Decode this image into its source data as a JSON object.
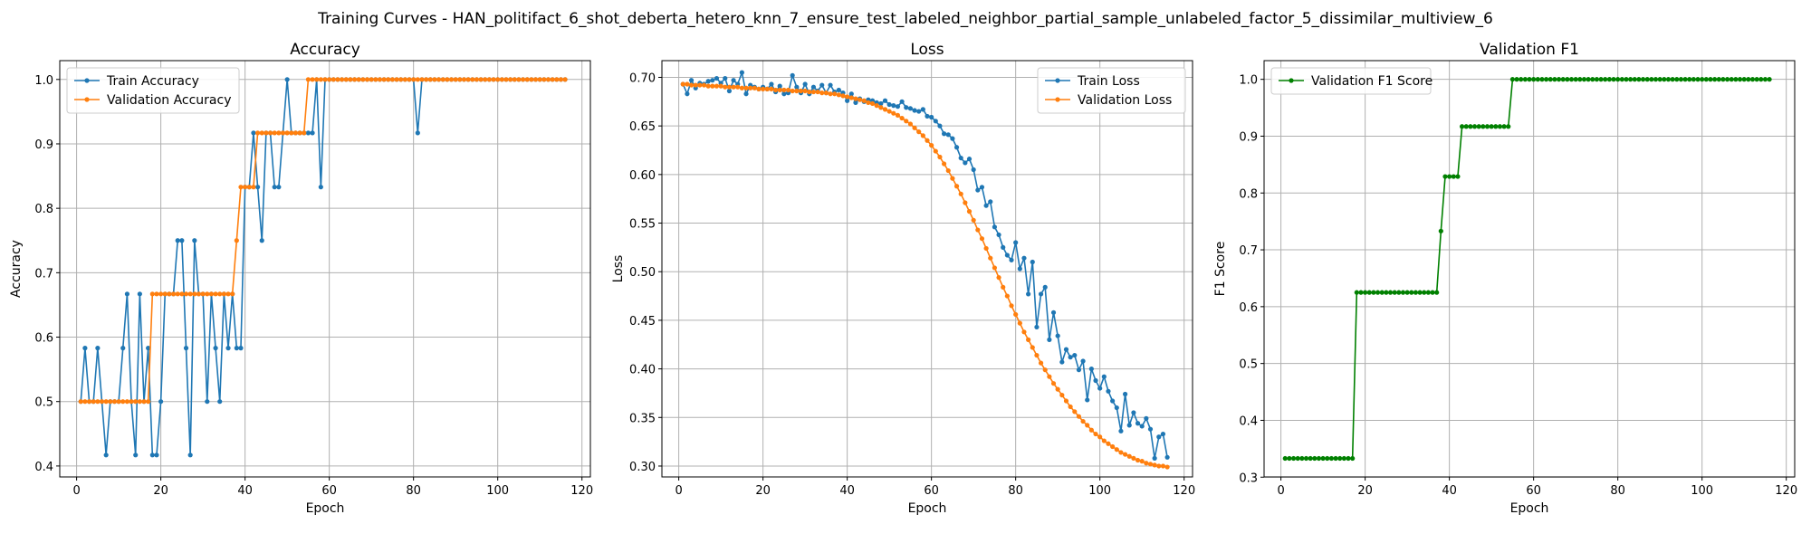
{
  "figure": {
    "title": "Training Curves - HAN_politifact_6_shot_deberta_hetero_knn_7_ensure_test_labeled_neighbor_partial_sample_unlabeled_factor_5_dissimilar_multiview_6"
  },
  "chart_data": [
    {
      "type": "line",
      "title": "Accuracy",
      "xlabel": "Epoch",
      "ylabel": "Accuracy",
      "xlim": [
        -4,
        122
      ],
      "ylim": [
        0.383,
        1.0292
      ],
      "xticks": [
        0,
        20,
        40,
        60,
        80,
        100,
        120
      ],
      "yticks": [
        0.4,
        0.5,
        0.6,
        0.7,
        0.8,
        0.9,
        1.0
      ],
      "ytick_labels": [
        "0.4",
        "0.5",
        "0.6",
        "0.7",
        "0.8",
        "0.9",
        "1.0"
      ],
      "grid": true,
      "legend_position": "upper left",
      "x_start": 1,
      "series": [
        {
          "name": "Train Accuracy",
          "color": "#1f77b4",
          "values": [
            0.5,
            0.583,
            0.5,
            0.5,
            0.583,
            0.5,
            0.417,
            0.5,
            0.5,
            0.5,
            0.583,
            0.667,
            0.5,
            0.417,
            0.667,
            0.5,
            0.583,
            0.417,
            0.417,
            0.5,
            0.667,
            0.667,
            0.667,
            0.75,
            0.75,
            0.583,
            0.417,
            0.75,
            0.667,
            0.667,
            0.5,
            0.667,
            0.583,
            0.5,
            0.667,
            0.583,
            0.667,
            0.583,
            0.583,
            0.833,
            0.833,
            0.917,
            0.833,
            0.75,
            0.917,
            0.917,
            0.833,
            0.833,
            0.917,
            1.0,
            0.917,
            0.917,
            0.917,
            0.917,
            0.917,
            0.917,
            1.0,
            0.833,
            1.0,
            1.0,
            1.0,
            1.0,
            1.0,
            1.0,
            1.0,
            1.0,
            1.0,
            1.0,
            1.0,
            1.0,
            1.0,
            1.0,
            1.0,
            1.0,
            1.0,
            1.0,
            1.0,
            1.0,
            1.0,
            1.0,
            0.917,
            1.0,
            1.0,
            1.0,
            1.0,
            1.0,
            1.0,
            1.0,
            1.0,
            1.0,
            1.0,
            1.0,
            1.0,
            1.0,
            1.0,
            1.0,
            1.0,
            1.0,
            1.0,
            1.0,
            1.0,
            1.0,
            1.0,
            1.0,
            1.0,
            1.0,
            1.0,
            1.0,
            1.0,
            1.0,
            1.0,
            1.0,
            1.0,
            1.0,
            1.0,
            1.0
          ]
        },
        {
          "name": "Validation Accuracy",
          "color": "#ff7f0e",
          "values": [
            0.5,
            0.5,
            0.5,
            0.5,
            0.5,
            0.5,
            0.5,
            0.5,
            0.5,
            0.5,
            0.5,
            0.5,
            0.5,
            0.5,
            0.5,
            0.5,
            0.5,
            0.667,
            0.667,
            0.667,
            0.667,
            0.667,
            0.667,
            0.667,
            0.667,
            0.667,
            0.667,
            0.667,
            0.667,
            0.667,
            0.667,
            0.667,
            0.667,
            0.667,
            0.667,
            0.667,
            0.667,
            0.75,
            0.833,
            0.833,
            0.833,
            0.833,
            0.917,
            0.917,
            0.917,
            0.917,
            0.917,
            0.917,
            0.917,
            0.917,
            0.917,
            0.917,
            0.917,
            0.917,
            1.0,
            1.0,
            1.0,
            1.0,
            1.0,
            1.0,
            1.0,
            1.0,
            1.0,
            1.0,
            1.0,
            1.0,
            1.0,
            1.0,
            1.0,
            1.0,
            1.0,
            1.0,
            1.0,
            1.0,
            1.0,
            1.0,
            1.0,
            1.0,
            1.0,
            1.0,
            1.0,
            1.0,
            1.0,
            1.0,
            1.0,
            1.0,
            1.0,
            1.0,
            1.0,
            1.0,
            1.0,
            1.0,
            1.0,
            1.0,
            1.0,
            1.0,
            1.0,
            1.0,
            1.0,
            1.0,
            1.0,
            1.0,
            1.0,
            1.0,
            1.0,
            1.0,
            1.0,
            1.0,
            1.0,
            1.0,
            1.0,
            1.0,
            1.0,
            1.0,
            1.0,
            1.0
          ]
        }
      ]
    },
    {
      "type": "line",
      "title": "Loss",
      "xlabel": "Epoch",
      "ylabel": "Loss",
      "xlim": [
        -4,
        122
      ],
      "ylim": [
        0.2888,
        0.7172
      ],
      "xticks": [
        0,
        20,
        40,
        60,
        80,
        100,
        120
      ],
      "yticks": [
        0.3,
        0.35,
        0.4,
        0.45,
        0.5,
        0.55,
        0.6,
        0.65,
        0.7
      ],
      "ytick_labels": [
        "0.30",
        "0.35",
        "0.40",
        "0.45",
        "0.50",
        "0.55",
        "0.60",
        "0.65",
        "0.70"
      ],
      "grid": true,
      "legend_position": "upper right",
      "x_start": 1,
      "series": [
        {
          "name": "Train Loss",
          "color": "#1f77b4",
          "values": [
            0.693,
            0.683,
            0.697,
            0.689,
            0.694,
            0.693,
            0.696,
            0.697,
            0.699,
            0.694,
            0.699,
            0.686,
            0.697,
            0.693,
            0.705,
            0.683,
            0.692,
            0.69,
            0.688,
            0.69,
            0.688,
            0.693,
            0.685,
            0.691,
            0.683,
            0.684,
            0.702,
            0.69,
            0.684,
            0.693,
            0.683,
            0.69,
            0.686,
            0.692,
            0.684,
            0.692,
            0.685,
            0.687,
            0.684,
            0.676,
            0.683,
            0.674,
            0.678,
            0.675,
            0.677,
            0.676,
            0.674,
            0.673,
            0.676,
            0.672,
            0.671,
            0.67,
            0.675,
            0.669,
            0.668,
            0.666,
            0.665,
            0.667,
            0.66,
            0.659,
            0.655,
            0.65,
            0.642,
            0.641,
            0.637,
            0.628,
            0.617,
            0.612,
            0.616,
            0.605,
            0.584,
            0.587,
            0.568,
            0.572,
            0.546,
            0.538,
            0.525,
            0.517,
            0.512,
            0.53,
            0.503,
            0.514,
            0.477,
            0.51,
            0.443,
            0.477,
            0.484,
            0.43,
            0.458,
            0.434,
            0.407,
            0.42,
            0.412,
            0.414,
            0.399,
            0.408,
            0.368,
            0.4,
            0.388,
            0.38,
            0.392,
            0.377,
            0.367,
            0.36,
            0.336,
            0.374,
            0.342,
            0.355,
            0.344,
            0.341,
            0.349,
            0.338,
            0.308,
            0.33,
            0.333,
            0.309
          ]
        },
        {
          "name": "Validation Loss",
          "color": "#ff7f0e",
          "values": [
            0.693,
            0.693,
            0.692,
            0.692,
            0.692,
            0.692,
            0.691,
            0.691,
            0.691,
            0.691,
            0.69,
            0.69,
            0.69,
            0.69,
            0.689,
            0.689,
            0.689,
            0.689,
            0.688,
            0.688,
            0.688,
            0.688,
            0.687,
            0.687,
            0.687,
            0.687,
            0.686,
            0.686,
            0.686,
            0.686,
            0.685,
            0.685,
            0.685,
            0.684,
            0.684,
            0.683,
            0.683,
            0.682,
            0.681,
            0.68,
            0.679,
            0.678,
            0.677,
            0.676,
            0.674,
            0.673,
            0.671,
            0.669,
            0.667,
            0.665,
            0.663,
            0.661,
            0.658,
            0.655,
            0.652,
            0.648,
            0.644,
            0.64,
            0.635,
            0.63,
            0.624,
            0.618,
            0.611,
            0.604,
            0.596,
            0.588,
            0.58,
            0.571,
            0.562,
            0.553,
            0.543,
            0.534,
            0.524,
            0.514,
            0.504,
            0.494,
            0.484,
            0.475,
            0.465,
            0.456,
            0.447,
            0.438,
            0.43,
            0.422,
            0.414,
            0.406,
            0.399,
            0.392,
            0.385,
            0.379,
            0.373,
            0.367,
            0.361,
            0.356,
            0.351,
            0.346,
            0.342,
            0.337,
            0.333,
            0.33,
            0.326,
            0.323,
            0.32,
            0.317,
            0.314,
            0.312,
            0.31,
            0.308,
            0.306,
            0.305,
            0.303,
            0.302,
            0.301,
            0.3,
            0.3,
            0.299
          ]
        }
      ]
    },
    {
      "type": "line",
      "title": "Validation F1",
      "xlabel": "Epoch",
      "ylabel": "F1 Score",
      "xlim": [
        -4,
        122
      ],
      "ylim": [
        0.3004,
        1.0329
      ],
      "xticks": [
        0,
        20,
        40,
        60,
        80,
        100,
        120
      ],
      "yticks": [
        0.3,
        0.4,
        0.5,
        0.6,
        0.7,
        0.8,
        0.9,
        1.0
      ],
      "ytick_labels": [
        "0.3",
        "0.4",
        "0.5",
        "0.6",
        "0.7",
        "0.8",
        "0.9",
        "1.0"
      ],
      "grid": true,
      "legend_position": "upper left",
      "x_start": 1,
      "series": [
        {
          "name": "Validation F1 Score",
          "color": "#008000",
          "values": [
            0.333,
            0.333,
            0.333,
            0.333,
            0.333,
            0.333,
            0.333,
            0.333,
            0.333,
            0.333,
            0.333,
            0.333,
            0.333,
            0.333,
            0.333,
            0.333,
            0.333,
            0.625,
            0.625,
            0.625,
            0.625,
            0.625,
            0.625,
            0.625,
            0.625,
            0.625,
            0.625,
            0.625,
            0.625,
            0.625,
            0.625,
            0.625,
            0.625,
            0.625,
            0.625,
            0.625,
            0.625,
            0.733,
            0.829,
            0.829,
            0.829,
            0.829,
            0.917,
            0.917,
            0.917,
            0.917,
            0.917,
            0.917,
            0.917,
            0.917,
            0.917,
            0.917,
            0.917,
            0.917,
            1.0,
            1.0,
            1.0,
            1.0,
            1.0,
            1.0,
            1.0,
            1.0,
            1.0,
            1.0,
            1.0,
            1.0,
            1.0,
            1.0,
            1.0,
            1.0,
            1.0,
            1.0,
            1.0,
            1.0,
            1.0,
            1.0,
            1.0,
            1.0,
            1.0,
            1.0,
            1.0,
            1.0,
            1.0,
            1.0,
            1.0,
            1.0,
            1.0,
            1.0,
            1.0,
            1.0,
            1.0,
            1.0,
            1.0,
            1.0,
            1.0,
            1.0,
            1.0,
            1.0,
            1.0,
            1.0,
            1.0,
            1.0,
            1.0,
            1.0,
            1.0,
            1.0,
            1.0,
            1.0,
            1.0,
            1.0,
            1.0,
            1.0,
            1.0,
            1.0,
            1.0,
            1.0
          ]
        }
      ]
    }
  ]
}
